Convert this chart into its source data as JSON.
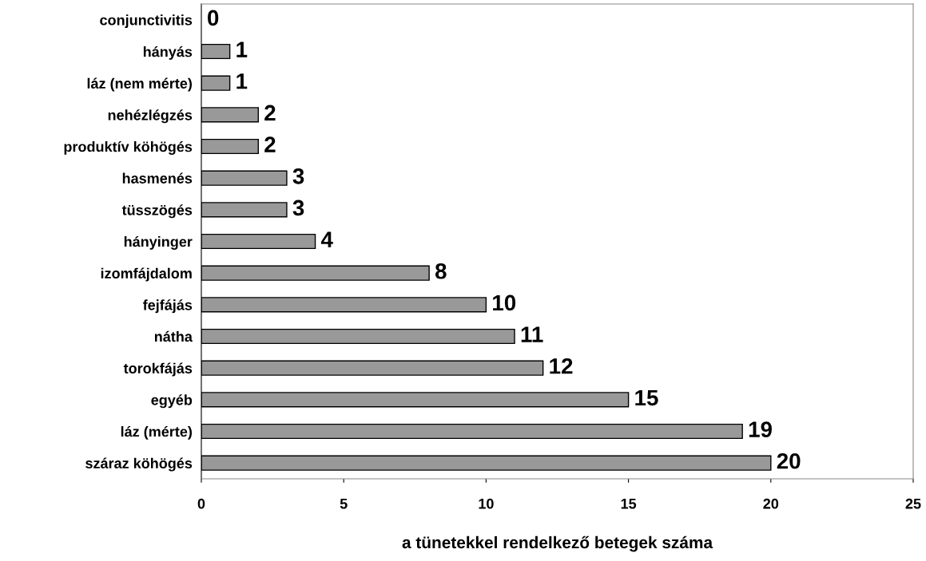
{
  "chart_data": {
    "type": "bar",
    "orientation": "horizontal",
    "xlabel": "a tünetekkel rendelkező betegek száma",
    "categories": [
      "conjunctivitis",
      "hányás",
      "láz (nem mérte)",
      "nehézlégzés",
      "produktív köhögés",
      "hasmenés",
      "tüsszögés",
      "hányinger",
      "izomfájdalom",
      "fejfájás",
      "nátha",
      "torokfájás",
      "egyéb",
      "láz (mérte)",
      "száraz köhögés"
    ],
    "values": [
      0,
      1,
      1,
      2,
      2,
      3,
      3,
      4,
      8,
      10,
      11,
      12,
      15,
      19,
      20
    ],
    "color": "#999999",
    "xlim": [
      0,
      25
    ],
    "xticks": [
      0,
      5,
      10,
      15,
      20,
      25
    ],
    "grid": false,
    "data_labels": true
  }
}
